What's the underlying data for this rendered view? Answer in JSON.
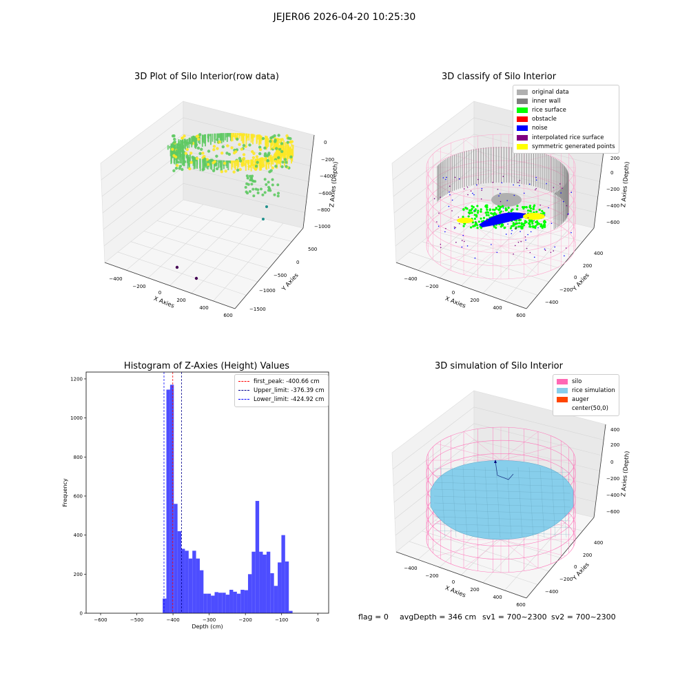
{
  "figure": {
    "suptitle": "JEJER06 2026-04-20 10:25:30"
  },
  "footer": {
    "flag": "flag = 0",
    "avg_depth": "avgDepth = 346 cm",
    "sv1": "sv1 = 700~2300",
    "sv2": "sv2 = 700~2300"
  },
  "chart_data": [
    {
      "type": "scatter",
      "title": "3D Plot of Silo Interior(row data)",
      "xlabel": "X Axies",
      "ylabel": "Y Axies",
      "zlabel": "Z Axies (Depth)",
      "x_ticks": [
        "−400",
        "−200",
        "0",
        "200",
        "400",
        "600"
      ],
      "y_ticks": [
        "−1500",
        "−1000",
        "−500",
        "0",
        "500"
      ],
      "z_ticks": [
        "−1000",
        "−800",
        "−600",
        "−400",
        "−200",
        "0"
      ],
      "xlim": [
        -500,
        650
      ],
      "ylim": [
        -1600,
        650
      ],
      "zlim": [
        -1100,
        50
      ],
      "colormap": [
        "#440154",
        "#21918c",
        "#5ec962",
        "#fde725"
      ],
      "outlier_points": [
        [
          -40,
          -1400,
          -1050
        ],
        [
          120,
          -1400,
          -1050
        ]
      ]
    },
    {
      "type": "scatter",
      "title": "3D classify of Silo Interior",
      "xlabel": "X Axies",
      "ylabel": "Y Axies",
      "zlabel": "Z Axies (Depth)",
      "x_ticks": [
        "−400",
        "−200",
        "0",
        "200",
        "400",
        "600"
      ],
      "y_ticks": [
        "−400",
        "−200",
        "0",
        "200",
        "400"
      ],
      "z_ticks": [
        "−600",
        "−400",
        "−200",
        "0",
        "200"
      ],
      "xlim": [
        -500,
        650
      ],
      "ylim": [
        -500,
        500
      ],
      "zlim": [
        -700,
        250
      ],
      "legend": [
        {
          "label": "original data",
          "color": "#b0b0b0"
        },
        {
          "label": "inner wall",
          "color": "#808080"
        },
        {
          "label": "rice surface",
          "color": "#00ff00"
        },
        {
          "label": "obstacle",
          "color": "#ff0000"
        },
        {
          "label": "noise",
          "color": "#0000ff"
        },
        {
          "label": "interpolated rice surface",
          "color": "#800080"
        },
        {
          "label": "symmetric generated points",
          "color": "#ffff00"
        }
      ]
    },
    {
      "type": "bar",
      "title": "Histogram of Z-Axies (Height) Values",
      "xlabel": "Depth (cm)",
      "ylabel": "Frequency",
      "xlim": [
        -640,
        30
      ],
      "ylim": [
        0,
        1235
      ],
      "x_ticks": [
        -600,
        -500,
        -400,
        -300,
        -200,
        -100,
        0
      ],
      "y_ticks": [
        0,
        200,
        400,
        600,
        800,
        1000,
        1200
      ],
      "bar_color": "#4d4dff",
      "bin_start": -428.5,
      "bin_width": 10.25,
      "values": [
        75,
        1145,
        1170,
        560,
        420,
        330,
        320,
        280,
        320,
        280,
        220,
        100,
        100,
        90,
        108,
        105,
        105,
        95,
        120,
        110,
        100,
        120,
        118,
        200,
        315,
        575,
        315,
        300,
        315,
        205,
        140,
        260,
        400,
        265,
        12
      ],
      "lines": [
        {
          "label": "first_peak: -400.66 cm",
          "value": -400.66,
          "color": "#ff0000"
        },
        {
          "label": "Upper_limit: -376.39 cm",
          "value": -376.39,
          "color": "#00008b"
        },
        {
          "label": "Lower_limit: -424.92 cm",
          "value": -424.92,
          "color": "#0000ff"
        }
      ]
    },
    {
      "type": "scatter",
      "title": "3D simulation of Silo Interior",
      "xlabel": "X Axies",
      "ylabel": "Y Axies",
      "zlabel": "Z Axies (Depth)",
      "x_ticks": [
        "−400",
        "−200",
        "0",
        "200",
        "400",
        "600"
      ],
      "y_ticks": [
        "−400",
        "−200",
        "0",
        "200",
        "400"
      ],
      "z_ticks": [
        "−600",
        "−400",
        "−200",
        "0",
        "200",
        "400"
      ],
      "xlim": [
        -500,
        650
      ],
      "ylim": [
        -500,
        500
      ],
      "zlim": [
        -700,
        450
      ],
      "legend": [
        {
          "label": "silo",
          "color": "#ff69b4"
        },
        {
          "label": "rice simulation",
          "color": "#87ceeb"
        },
        {
          "label": "auger",
          "color": "#ff4500"
        },
        {
          "label": "center(50,0)",
          "color": "#ffffff"
        }
      ]
    }
  ]
}
